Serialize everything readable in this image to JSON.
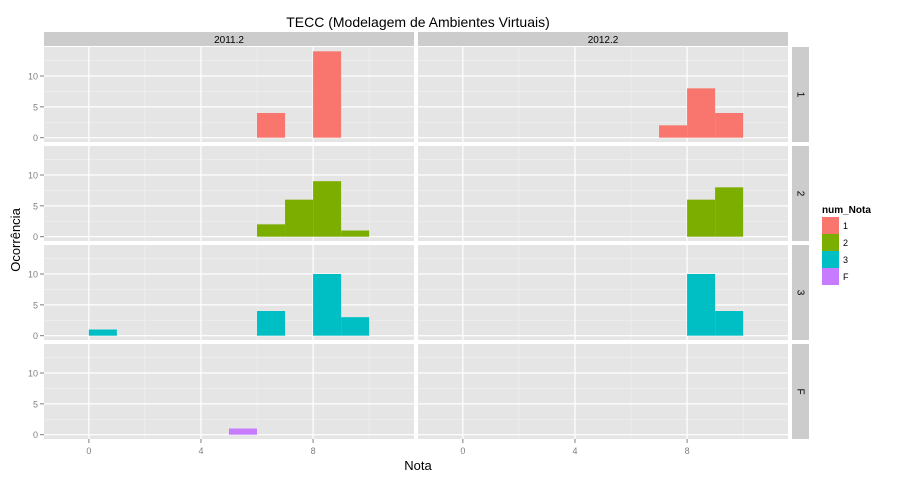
{
  "chart_data": {
    "type": "bar",
    "title": "TECC (Modelagem de Ambientes Virtuais)",
    "xlabel": "Nota",
    "ylabel": "Ocorrência",
    "col_facets": [
      "2011.2",
      "2012.2"
    ],
    "row_facets": [
      "1",
      "2",
      "3",
      "F"
    ],
    "x_ticks": [
      "0",
      "4",
      "8"
    ],
    "y_ticks": [
      "0",
      "5",
      "10"
    ],
    "xlim": [
      -1.6,
      11.6
    ],
    "ylim": [
      -0.7,
      14.7
    ],
    "bin_width": 1,
    "grid": true,
    "legend": {
      "title": "num_Nota",
      "position": "right",
      "entries": [
        {
          "label": "1",
          "color": "#F8766D"
        },
        {
          "label": "2",
          "color": "#7CAE00"
        },
        {
          "label": "3",
          "color": "#00BFC4"
        },
        {
          "label": "F",
          "color": "#C77CFF"
        }
      ]
    },
    "panels": [
      {
        "col": "2011.2",
        "row": "1",
        "series": "1",
        "bins": [
          {
            "x": 6,
            "y": 4
          },
          {
            "x": 8,
            "y": 14
          }
        ]
      },
      {
        "col": "2012.2",
        "row": "1",
        "series": "1",
        "bins": [
          {
            "x": 7,
            "y": 2
          },
          {
            "x": 8,
            "y": 8
          },
          {
            "x": 9,
            "y": 4
          }
        ]
      },
      {
        "col": "2011.2",
        "row": "2",
        "series": "2",
        "bins": [
          {
            "x": 6,
            "y": 2
          },
          {
            "x": 7,
            "y": 6
          },
          {
            "x": 8,
            "y": 9
          },
          {
            "x": 9,
            "y": 1
          }
        ]
      },
      {
        "col": "2012.2",
        "row": "2",
        "series": "2",
        "bins": [
          {
            "x": 8,
            "y": 6
          },
          {
            "x": 9,
            "y": 8
          }
        ]
      },
      {
        "col": "2011.2",
        "row": "3",
        "series": "3",
        "bins": [
          {
            "x": 0,
            "y": 1
          },
          {
            "x": 6,
            "y": 4
          },
          {
            "x": 8,
            "y": 10
          },
          {
            "x": 9,
            "y": 3
          }
        ]
      },
      {
        "col": "2012.2",
        "row": "3",
        "series": "3",
        "bins": [
          {
            "x": 8,
            "y": 10
          },
          {
            "x": 9,
            "y": 4
          }
        ]
      },
      {
        "col": "2011.2",
        "row": "F",
        "series": "F",
        "bins": [
          {
            "x": 5,
            "y": 1
          }
        ]
      },
      {
        "col": "2012.2",
        "row": "F",
        "series": "F",
        "bins": []
      }
    ]
  }
}
